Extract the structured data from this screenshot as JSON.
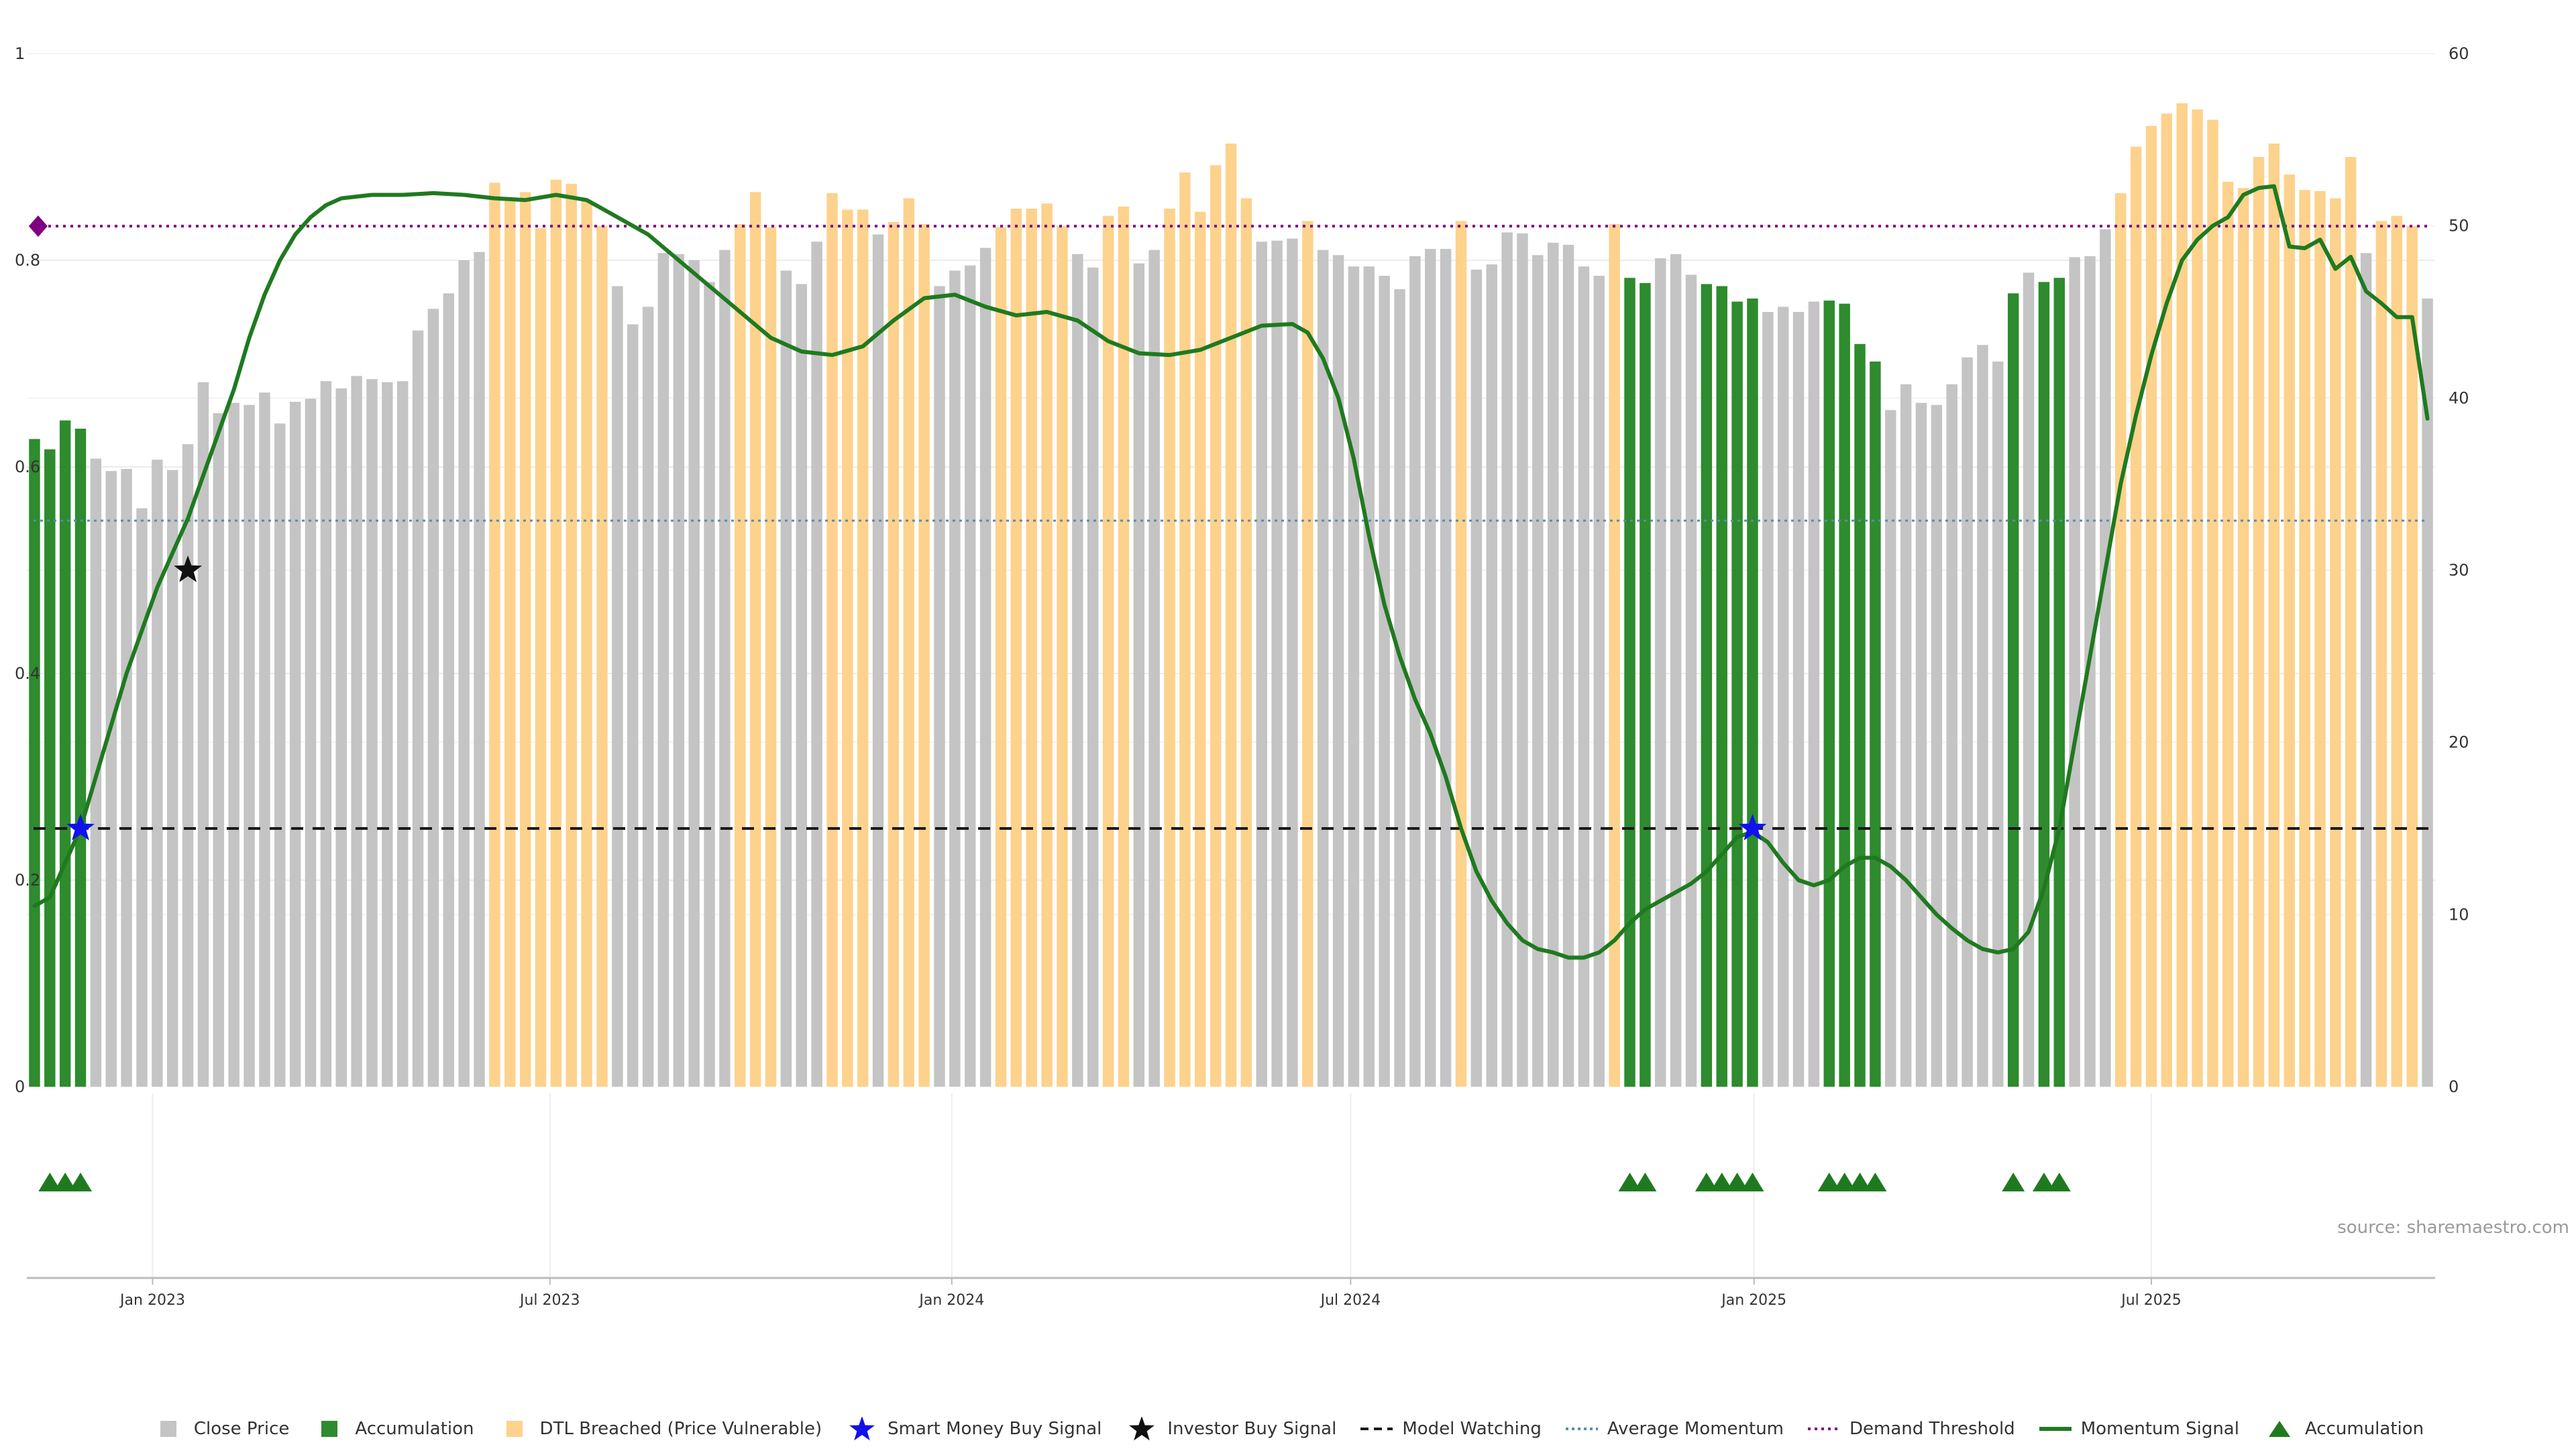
{
  "chart_data": {
    "type": "bar",
    "title": "",
    "left_axis": {
      "ylim": [
        0,
        1
      ],
      "ticks": [
        "0",
        "0.2",
        "0.4",
        "0.6",
        "0.8",
        "1"
      ]
    },
    "right_axis": {
      "ylim": [
        0,
        60
      ],
      "ticks": [
        "0",
        "10",
        "20",
        "30",
        "40",
        "50",
        "60"
      ]
    },
    "x_ticks": [
      "Jan 2023",
      "Jul 2023",
      "Jan 2024",
      "Jul 2024",
      "Jan 2025",
      "Jul 2025"
    ],
    "x_range_weeks": [
      0,
      157
    ],
    "x_tick_weeks": [
      7.7,
      33.6,
      59.8,
      85.8,
      112.1,
      138.0
    ],
    "bars": {
      "name": "Close Price",
      "values": [
        0.627,
        0.617,
        0.645,
        0.637,
        0.608,
        0.596,
        0.598,
        0.56,
        0.607,
        0.597,
        0.622,
        0.682,
        0.652,
        0.662,
        0.66,
        0.672,
        0.642,
        0.663,
        0.666,
        0.683,
        0.676,
        0.688,
        0.685,
        0.682,
        0.683,
        0.732,
        0.753,
        0.768,
        0.8,
        0.808,
        0.875,
        0.858,
        0.866,
        0.831,
        0.878,
        0.874,
        0.858,
        0.833,
        0.775,
        0.738,
        0.755,
        0.807,
        0.806,
        0.8,
        0.779,
        0.81,
        0.835,
        0.866,
        0.832,
        0.79,
        0.777,
        0.818,
        0.865,
        0.849,
        0.849,
        0.825,
        0.837,
        0.86,
        0.835,
        0.775,
        0.79,
        0.795,
        0.812,
        0.832,
        0.85,
        0.85,
        0.855,
        0.833,
        0.806,
        0.793,
        0.843,
        0.852,
        0.797,
        0.81,
        0.85,
        0.885,
        0.847,
        0.892,
        0.913,
        0.86,
        0.818,
        0.819,
        0.821,
        0.838,
        0.81,
        0.805,
        0.794,
        0.794,
        0.785,
        0.772,
        0.804,
        0.811,
        0.811,
        0.838,
        0.791,
        0.796,
        0.827,
        0.826,
        0.805,
        0.817,
        0.815,
        0.794,
        0.785,
        0.835,
        0.783,
        0.778,
        0.802,
        0.806,
        0.786,
        0.777,
        0.775,
        0.76,
        0.763,
        0.75,
        0.755,
        0.75,
        0.76,
        0.761,
        0.758,
        0.719,
        0.702,
        0.655,
        0.68,
        0.662,
        0.66,
        0.68,
        0.706,
        0.718,
        0.702,
        0.768,
        0.788,
        0.779,
        0.783,
        0.803,
        0.804,
        0.83,
        0.865,
        0.91,
        0.93,
        0.942,
        0.952,
        0.946,
        0.936,
        0.876,
        0.87,
        0.9,
        0.913,
        0.883,
        0.868,
        0.867,
        0.86,
        0.9,
        0.807,
        0.838,
        0.843,
        0.833,
        0.763
      ],
      "category": [
        "A",
        "A",
        "A",
        "A",
        "C",
        "C",
        "C",
        "C",
        "C",
        "C",
        "C",
        "C",
        "C",
        "C",
        "C",
        "C",
        "C",
        "C",
        "C",
        "C",
        "C",
        "C",
        "C",
        "C",
        "C",
        "C",
        "C",
        "C",
        "C",
        "C",
        "D",
        "D",
        "D",
        "D",
        "D",
        "D",
        "D",
        "D",
        "C",
        "C",
        "C",
        "C",
        "C",
        "C",
        "C",
        "C",
        "D",
        "D",
        "D",
        "C",
        "C",
        "C",
        "D",
        "D",
        "D",
        "C",
        "D",
        "D",
        "D",
        "C",
        "C",
        "C",
        "C",
        "D",
        "D",
        "D",
        "D",
        "D",
        "C",
        "C",
        "D",
        "D",
        "C",
        "C",
        "D",
        "D",
        "D",
        "D",
        "D",
        "D",
        "C",
        "C",
        "C",
        "D",
        "C",
        "C",
        "C",
        "C",
        "C",
        "C",
        "C",
        "C",
        "C",
        "D",
        "C",
        "C",
        "C",
        "C",
        "C",
        "C",
        "C",
        "C",
        "C",
        "D",
        "A",
        "A",
        "C",
        "C",
        "C",
        "A",
        "A",
        "A",
        "A",
        "C",
        "C",
        "C",
        "C",
        "A",
        "A",
        "A",
        "A",
        "C",
        "C",
        "C",
        "C",
        "C",
        "C",
        "C",
        "C",
        "A",
        "C",
        "A",
        "A",
        "C",
        "C",
        "C",
        "D",
        "D",
        "D",
        "D",
        "D",
        "D",
        "D",
        "D",
        "D",
        "D",
        "D",
        "D",
        "D",
        "D",
        "D",
        "D",
        "C",
        "D",
        "D",
        "D",
        "C"
      ]
    },
    "momentum_signal": {
      "name": "Momentum Signal",
      "points": [
        [
          0,
          10.5
        ],
        [
          1,
          11
        ],
        [
          2,
          13
        ],
        [
          3,
          15
        ],
        [
          4,
          18
        ],
        [
          5,
          21
        ],
        [
          6,
          24
        ],
        [
          7,
          26.5
        ],
        [
          8,
          29
        ],
        [
          9,
          31
        ],
        [
          10,
          33
        ],
        [
          11,
          35.5
        ],
        [
          12,
          38
        ],
        [
          13,
          40.5
        ],
        [
          14,
          43.5
        ],
        [
          15,
          46
        ],
        [
          16,
          48
        ],
        [
          17,
          49.5
        ],
        [
          18,
          50.5
        ],
        [
          19,
          51.2
        ],
        [
          20,
          51.6
        ],
        [
          22,
          51.8
        ],
        [
          24,
          51.8
        ],
        [
          26,
          51.9
        ],
        [
          28,
          51.8
        ],
        [
          30,
          51.6
        ],
        [
          32,
          51.5
        ],
        [
          34,
          51.8
        ],
        [
          36,
          51.5
        ],
        [
          38,
          50.5
        ],
        [
          40,
          49.5
        ],
        [
          42,
          48
        ],
        [
          44,
          46.5
        ],
        [
          46,
          45
        ],
        [
          48,
          43.5
        ],
        [
          50,
          42.7
        ],
        [
          52,
          42.5
        ],
        [
          54,
          43
        ],
        [
          56,
          44.5
        ],
        [
          58,
          45.8
        ],
        [
          60,
          46
        ],
        [
          62,
          45.3
        ],
        [
          64,
          44.8
        ],
        [
          66,
          45
        ],
        [
          68,
          44.5
        ],
        [
          70,
          43.3
        ],
        [
          72,
          42.6
        ],
        [
          74,
          42.5
        ],
        [
          76,
          42.8
        ],
        [
          78,
          43.5
        ],
        [
          80,
          44.2
        ],
        [
          82,
          44.3
        ],
        [
          83,
          43.8
        ],
        [
          84,
          42.3
        ],
        [
          85,
          40
        ],
        [
          86,
          36.5
        ],
        [
          87,
          32
        ],
        [
          88,
          28
        ],
        [
          89,
          25
        ],
        [
          90,
          22.5
        ],
        [
          91,
          20.5
        ],
        [
          92,
          18
        ],
        [
          93,
          15
        ],
        [
          94,
          12.5
        ],
        [
          95,
          10.8
        ],
        [
          96,
          9.5
        ],
        [
          97,
          8.5
        ],
        [
          98,
          8
        ],
        [
          99,
          7.8
        ],
        [
          100,
          7.5
        ],
        [
          101,
          7.5
        ],
        [
          102,
          7.8
        ],
        [
          103,
          8.5
        ],
        [
          104,
          9.5
        ],
        [
          105,
          10.3
        ],
        [
          106,
          10.8
        ],
        [
          107,
          11.3
        ],
        [
          108,
          11.8
        ],
        [
          109,
          12.5
        ],
        [
          110,
          13.5
        ],
        [
          111,
          14.5
        ],
        [
          112,
          14.8
        ],
        [
          113,
          14.2
        ],
        [
          114,
          13
        ],
        [
          115,
          12
        ],
        [
          116,
          11.7
        ],
        [
          117,
          12
        ],
        [
          118,
          12.8
        ],
        [
          119,
          13.3
        ],
        [
          120,
          13.3
        ],
        [
          121,
          12.8
        ],
        [
          122,
          12
        ],
        [
          123,
          11
        ],
        [
          124,
          10
        ],
        [
          125,
          9.2
        ],
        [
          126,
          8.5
        ],
        [
          127,
          8
        ],
        [
          128,
          7.8
        ],
        [
          129,
          8
        ],
        [
          130,
          9
        ],
        [
          131,
          11.5
        ],
        [
          132,
          15
        ],
        [
          133,
          20
        ],
        [
          134,
          25
        ],
        [
          135,
          30
        ],
        [
          136,
          35
        ],
        [
          137,
          39
        ],
        [
          138,
          42.5
        ],
        [
          139,
          45.5
        ],
        [
          140,
          48
        ],
        [
          141,
          49.2
        ],
        [
          142,
          50
        ],
        [
          143,
          50.5
        ],
        [
          144,
          51.8
        ],
        [
          145,
          52.2
        ],
        [
          146,
          52.3
        ],
        [
          147,
          48.8
        ],
        [
          148,
          48.7
        ],
        [
          149,
          49.2
        ],
        [
          150,
          47.5
        ],
        [
          151,
          48.2
        ],
        [
          152,
          46.2
        ],
        [
          153,
          45.5
        ],
        [
          154,
          44.7
        ],
        [
          155,
          44.7
        ],
        [
          156,
          38.8
        ]
      ]
    },
    "reference_lines": {
      "model_watching": {
        "name": "Model Watching",
        "value": 0.25,
        "axis": "left"
      },
      "average_momentum": {
        "name": "Average Momentum",
        "value": 0.548,
        "axis": "left"
      },
      "demand_threshold": {
        "name": "Demand Threshold",
        "value": 0.833,
        "axis": "left"
      }
    },
    "smart_money_buy_signals": [
      {
        "week": 3,
        "value": 0.25
      },
      {
        "week": 112,
        "value": 0.25
      }
    ],
    "investor_buy_signals": [
      {
        "week": 10,
        "value": 0.5
      }
    ],
    "demand_marker": {
      "week": 0.5,
      "value": 0.833
    },
    "accumulation_markers": [
      1,
      2,
      3,
      104,
      105,
      109,
      110,
      111,
      112,
      117,
      118,
      119,
      120,
      129,
      131,
      132
    ],
    "colors": {
      "close_price": "#c4c4c4",
      "accumulation": "#2e8b2e",
      "dtl_breached": "#fdd28c",
      "momentum": "#1f7a1f",
      "smart_money": "#1111ee",
      "investor": "#111111",
      "model_watching": "#1a1a1a",
      "average_momentum": "#5b8bb0",
      "demand_threshold": "#800080",
      "accumulation_marker": "#1f7a1f"
    }
  },
  "source_text": "source: sharemaestro.com",
  "legend": [
    {
      "key": "close_price",
      "label": "Close Price"
    },
    {
      "key": "accumulation",
      "label": "Accumulation"
    },
    {
      "key": "dtl_breached",
      "label": "DTL Breached (Price Vulnerable)"
    },
    {
      "key": "smart_money",
      "label": "Smart Money Buy Signal"
    },
    {
      "key": "investor",
      "label": "Investor Buy Signal"
    },
    {
      "key": "model_watching",
      "label": "Model Watching"
    },
    {
      "key": "average_momentum",
      "label": "Average Momentum"
    },
    {
      "key": "demand_threshold",
      "label": "Demand Threshold"
    },
    {
      "key": "momentum",
      "label": "Momentum Signal"
    },
    {
      "key": "accumulation_marker",
      "label": "Accumulation"
    }
  ]
}
